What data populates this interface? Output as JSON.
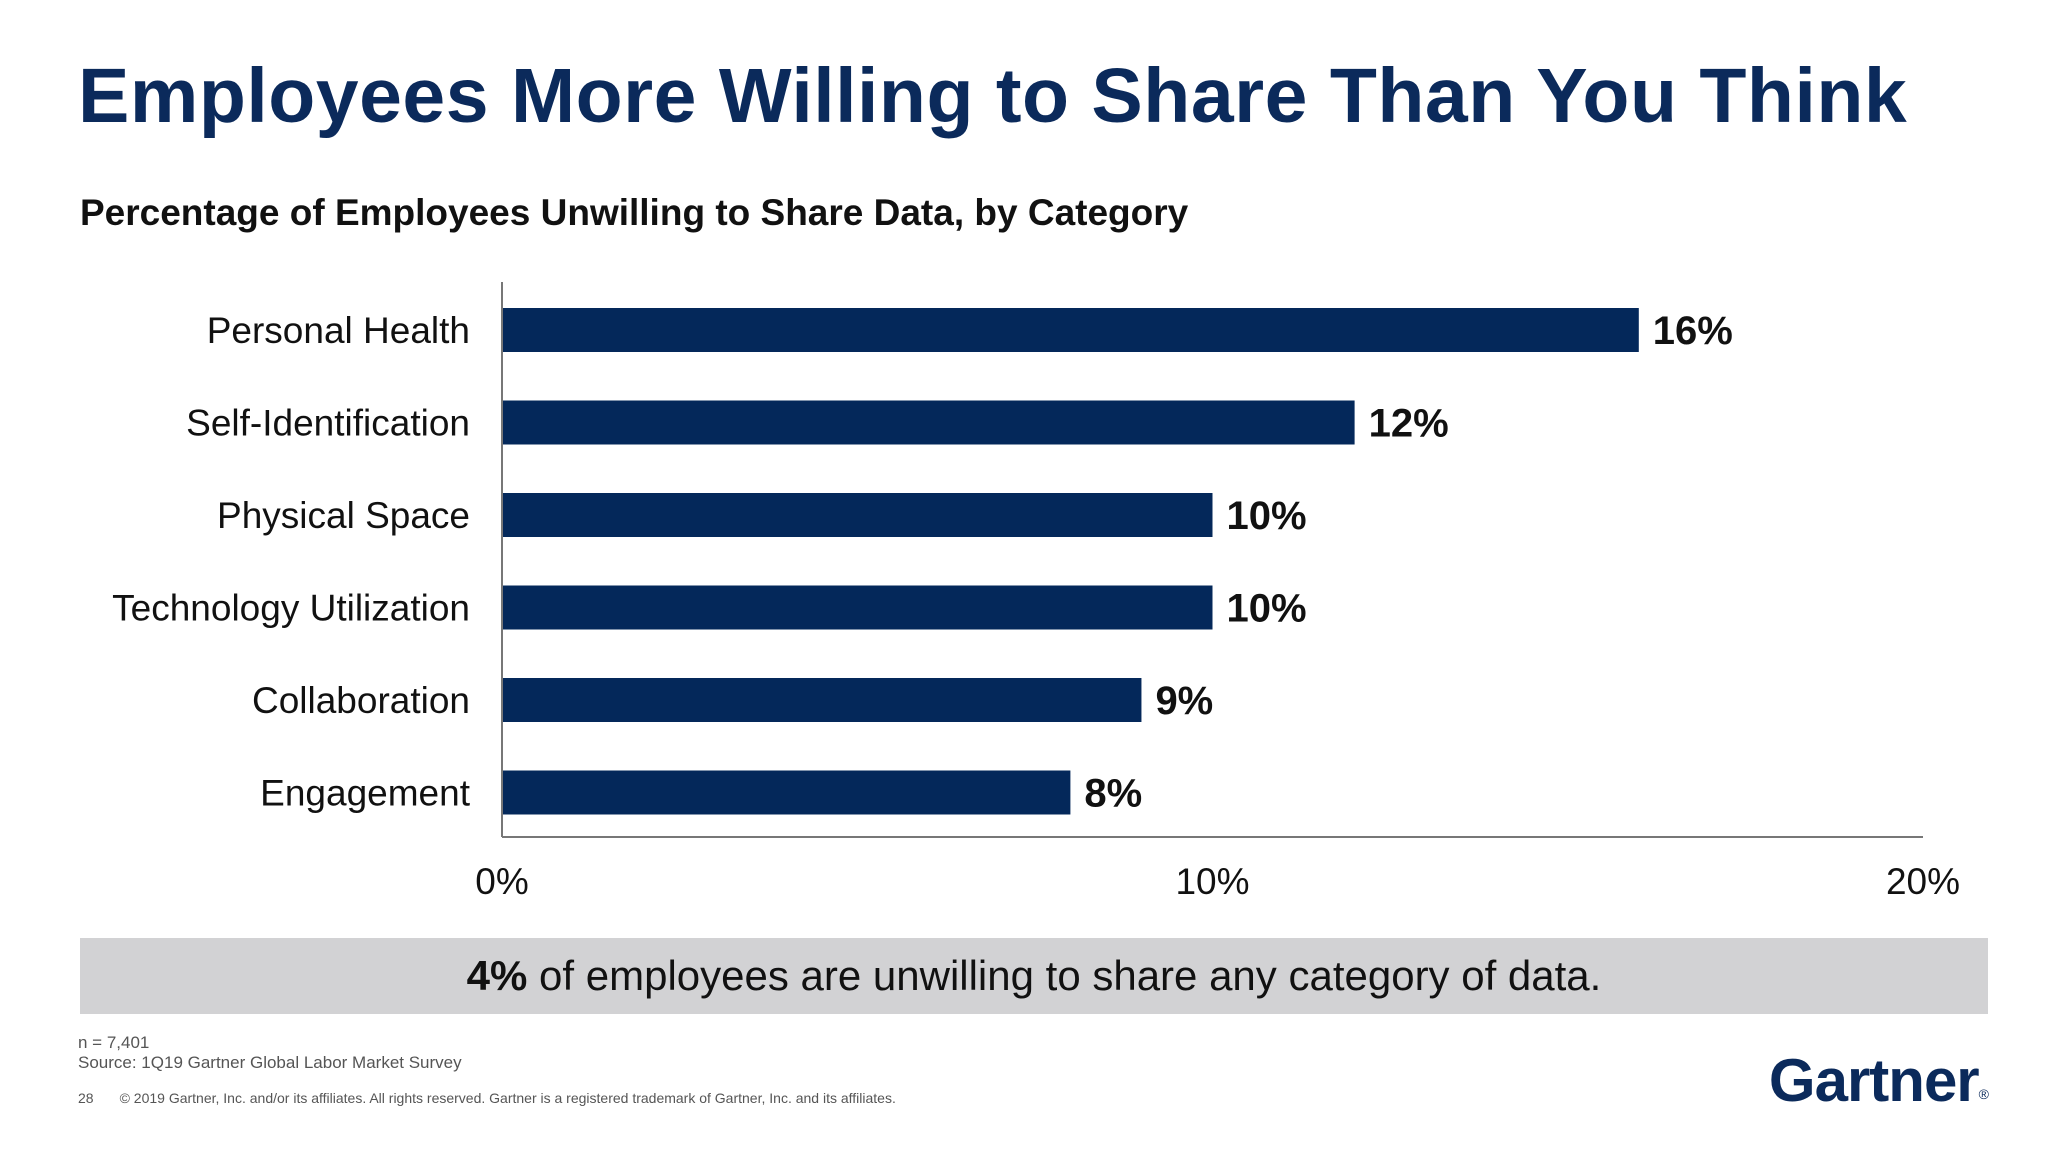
{
  "slide": {
    "title": "Employees More Willing to Share Than You Think",
    "subtitle": "Percentage of Employees Unwilling to Share Data, by Category"
  },
  "chart_data": {
    "type": "bar",
    "orientation": "horizontal",
    "categories": [
      "Personal Health",
      "Self-Identification",
      "Physical Space",
      "Technology Utilization",
      "Collaboration",
      "Engagement"
    ],
    "values": [
      16,
      12,
      10,
      10,
      9,
      8
    ],
    "data_labels": [
      "16%",
      "12%",
      "10%",
      "10%",
      "9%",
      "8%"
    ],
    "x_ticks": [
      "0%",
      "10%",
      "20%"
    ],
    "xlim": [
      0,
      20
    ],
    "grid": false,
    "bar_color": "#04285a"
  },
  "callout": {
    "highlight": "4%",
    "text": " of employees are unwilling to share any category of data."
  },
  "footer": {
    "n": "n = 7,401",
    "source": "Source: 1Q19 Gartner Global Labor Market Survey",
    "page": "28",
    "copyright": "© 2019 Gartner, Inc. and/or its affiliates. All rights reserved. Gartner is a registered trademark of Gartner, Inc. and its affiliates.",
    "logo": "Gartner",
    "logo_mark": "®"
  }
}
